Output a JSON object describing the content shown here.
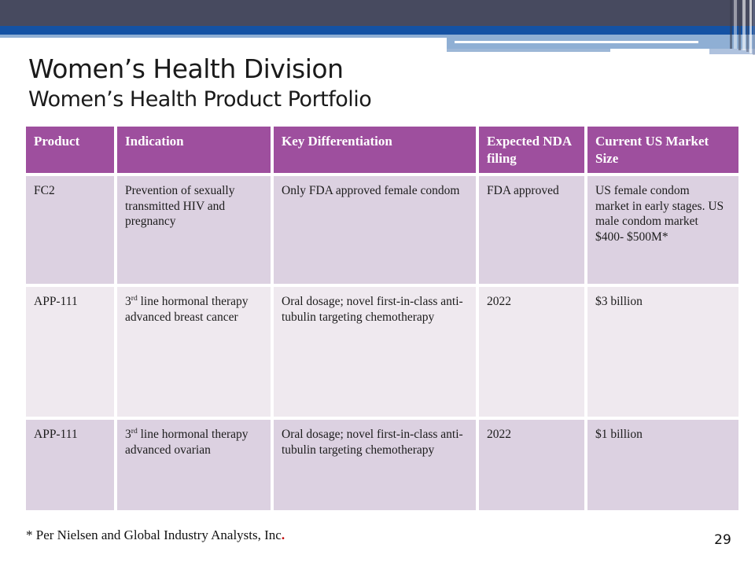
{
  "header": {
    "title": "Women’s Health Division",
    "subtitle": "Women’s Health Product Portfolio"
  },
  "table": {
    "columns": [
      "Product",
      "Indication",
      "Key Differentiation",
      "Expected NDA filing",
      "Current US Market Size"
    ],
    "rows": [
      {
        "product": "FC2",
        "indication_pre": "Prevention of sexually transmitted HIV and pregnancy",
        "indication_sup": "",
        "indication_post": "",
        "differentiation": "Only FDA approved female condom",
        "nda": "FDA approved",
        "market": "US female condom market in early stages. US male condom market $400- $500M*"
      },
      {
        "product": "APP-111",
        "indication_pre": "3",
        "indication_sup": "rd",
        "indication_post": " line hormonal therapy advanced breast cancer",
        "differentiation": "Oral dosage; novel first-in-class anti-tubulin targeting chemotherapy",
        "nda": "2022",
        "market": "$3 billion"
      },
      {
        "product": "APP-111",
        "indication_pre": "3",
        "indication_sup": "rd",
        "indication_post": " line hormonal therapy advanced ovarian",
        "differentiation": "Oral dosage; novel first-in-class anti-tubulin targeting chemotherapy",
        "nda": "2022",
        "market": "$1 billion"
      }
    ]
  },
  "footer": {
    "note": "* Per Nielsen and Global Industry Analysts, Inc",
    "period": ".",
    "page_number": "29"
  },
  "colors": {
    "banner_dark": "#474A5F",
    "banner_blue": "#1452A4",
    "banner_light_blue": "#8FAFD4",
    "table_header_bg": "#9E4F9E",
    "table_header_text": "#FFFFFF",
    "row_lavender": "#DCD1E1",
    "row_pale": "#EFE9EF",
    "footnote_period_red": "#C00000"
  }
}
